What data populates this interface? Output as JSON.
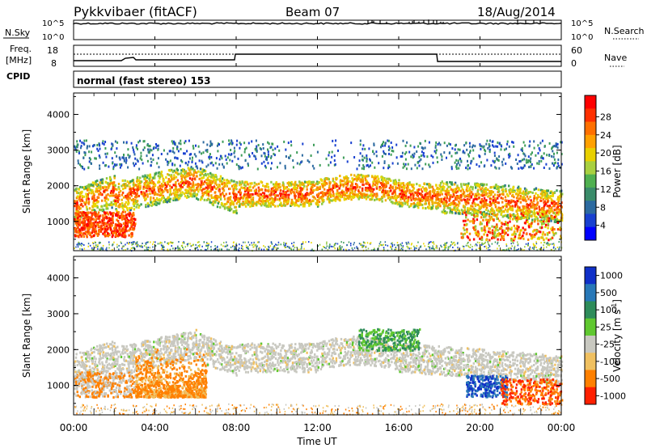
{
  "header": {
    "station": "Pykkvibaer (fitACF)",
    "beam": "Beam 07",
    "date": "18/Aug/2014"
  },
  "nsky_panel": {
    "left_label": "N.Sky",
    "right_label": "N.Search",
    "left_ticks": [
      "10^5",
      "10^0"
    ],
    "right_ticks": [
      "10^5",
      "10^0"
    ]
  },
  "freq_panel": {
    "left_label_1": "Freq.",
    "left_label_2": "[MHz]",
    "right_label": "Nave",
    "left_ticks": [
      "18",
      "8"
    ],
    "right_ticks": [
      "60",
      "0"
    ]
  },
  "cpid": {
    "label": "CPID",
    "mode": "normal (fast stereo) 153"
  },
  "chart_data": [
    {
      "type": "heatmap",
      "quantity": "Power",
      "ylabel": "Slant Range [km]",
      "ylim": [
        180,
        4600
      ],
      "yticks": [
        "1000",
        "2000",
        "3000",
        "4000"
      ],
      "colorbar": {
        "label": "Power [dB]",
        "ticks": [
          "4",
          "8",
          "12",
          "16",
          "20",
          "24",
          "28"
        ],
        "colors": [
          "#0000ff",
          "#1f4fb0",
          "#3c8c5a",
          "#78c040",
          "#e8e000",
          "#ff8c00",
          "#ff2000"
        ]
      }
    },
    {
      "type": "heatmap",
      "quantity": "Velocity",
      "ylabel": "Slant Range [km]",
      "ylim": [
        180,
        4600
      ],
      "yticks": [
        "1000",
        "2000",
        "3000",
        "4000"
      ],
      "xlabel": "Time UT",
      "xticks": [
        "00:00",
        "04:00",
        "08:00",
        "12:00",
        "16:00",
        "20:00",
        "00:00"
      ],
      "colorbar": {
        "label": "Velocity [m s",
        "label_sup": "-1",
        "label_end": "]",
        "ticks": [
          "1000",
          "500",
          "100",
          "25",
          "-25",
          "-100",
          "-500",
          "-1000"
        ],
        "colors": [
          "#1030c8",
          "#2878b8",
          "#2e8c5a",
          "#60c830",
          "#c8c8c0",
          "#f0c060",
          "#ff8000",
          "#ff2000"
        ]
      }
    }
  ]
}
